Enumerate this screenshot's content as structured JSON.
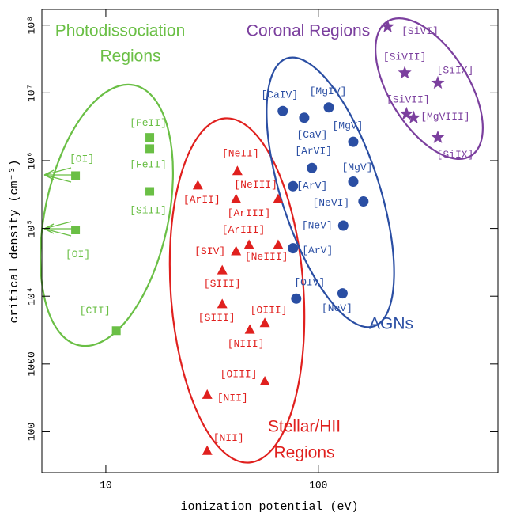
{
  "chart_data": {
    "type": "scatter",
    "xlabel": "ionization potential (eV)",
    "ylabel": "critical density (cm⁻³)",
    "xscale": "log",
    "yscale": "log",
    "xlim": [
      5,
      700
    ],
    "ylim": [
      25,
      170000000
    ],
    "xticks": [
      10,
      100
    ],
    "yticks": [
      100,
      1000,
      {
        "value": 10000,
        "label": "10⁴"
      },
      {
        "value": 100000,
        "label": "10⁵"
      },
      {
        "value": 1000000,
        "label": "10⁶"
      },
      {
        "value": 10000000,
        "label": "10⁷"
      },
      {
        "value": 100000000,
        "label": "10⁸"
      }
    ],
    "series": [
      {
        "color": "#6abf45",
        "marker": "square",
        "annotation": [
          "Photodissociation",
          "Regions"
        ],
        "labels": [
          "[OI]",
          "[OI]",
          "[FeII]",
          "[FeII]",
          "[SiII]",
          "[CII]"
        ],
        "x": [
          7.2,
          7.2,
          16.1,
          16.1,
          16.1,
          11.2
        ],
        "y": [
          600000,
          95000,
          2200000,
          1500000,
          350000,
          3100
        ]
      },
      {
        "color": "#e0201e",
        "marker": "triangle",
        "annotation": [
          "Stellar/HII",
          "Regions"
        ],
        "labels": [
          "[NeII]",
          "[ArII]",
          "[NeIII]",
          "[ArIII]",
          "[SIV]",
          "[NeIII]",
          "[ArIII]",
          "[SIII]",
          "[SIII]",
          "[OIII]",
          "[NIII]",
          "[OIII]",
          "[NII]",
          "[NII]"
        ],
        "x": [
          41.6,
          27.1,
          41,
          64.7,
          41,
          47.2,
          64.7,
          35.3,
          35.3,
          56,
          47.6,
          56,
          30,
          30
        ],
        "y": [
          700000,
          430000,
          270000,
          270000,
          46000,
          57000,
          57000,
          24000,
          7600,
          4000,
          3200,
          550,
          350,
          52
        ]
      },
      {
        "color": "#2a4ea3",
        "marker": "circle",
        "annotation": [
          "AGNs"
        ],
        "labels": [
          "[CaIV]",
          "[CaV]",
          "[MgIV]",
          "[MgV]",
          "[ArVI]",
          "[MgV]",
          "[ArV]",
          "[NeVI]",
          "[NeV]",
          "[ArV]",
          "[OIV]",
          "[NeV]"
        ],
        "x": [
          68,
          85.8,
          112,
          146,
          93.3,
          146,
          76,
          163,
          131,
          76,
          78.7,
          130
        ],
        "y": [
          5400000,
          4300000,
          6100000,
          1900000,
          780000,
          490000,
          420000,
          250000,
          110000,
          51000,
          9200,
          11000
        ]
      },
      {
        "color": "#7b3f9e",
        "marker": "star",
        "annotation": [
          "Coronal Regions"
        ],
        "labels": [
          "[SiVI]",
          "[SiVII]",
          "[SiIX]",
          "[SiVII]",
          "[MgVIII]",
          "[SiIX]"
        ],
        "x": [
          212,
          255,
          365,
          260,
          281,
          365
        ],
        "y": [
          95000000,
          19700000,
          14000000,
          4900000,
          4300000,
          2200000
        ]
      }
    ]
  }
}
